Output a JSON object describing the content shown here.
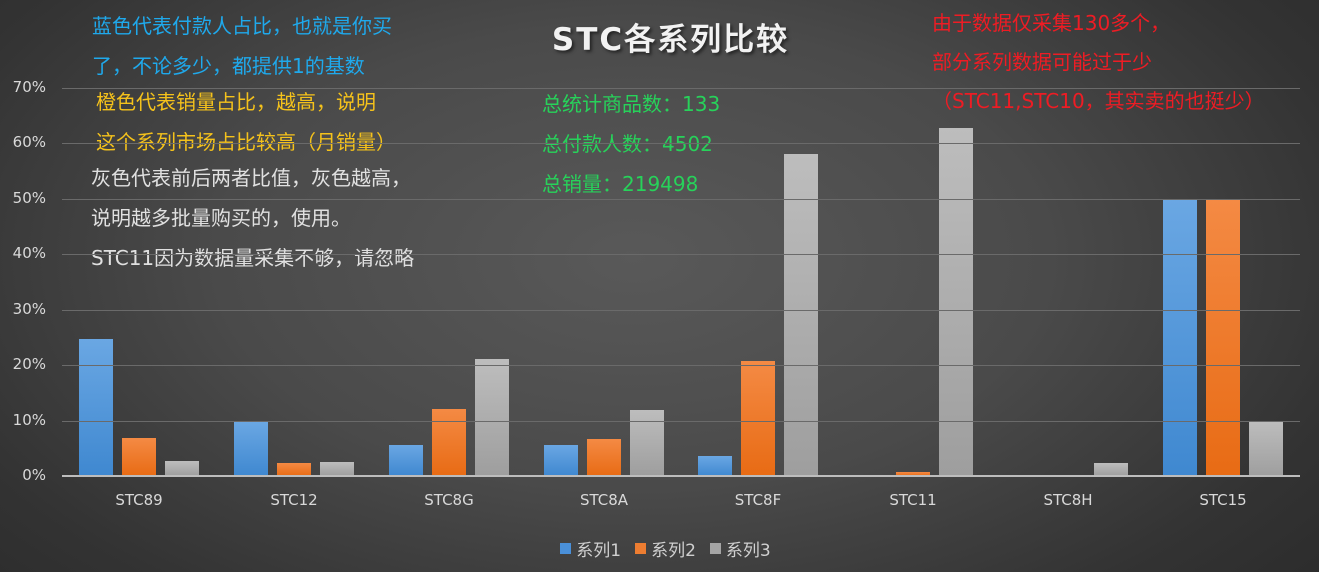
{
  "chart_data": {
    "type": "bar",
    "title": "STC各系列比较",
    "xlabel": "",
    "ylabel": "",
    "ylim": [
      0,
      0.7
    ],
    "yticks": [
      "0%",
      "10%",
      "20%",
      "30%",
      "40%",
      "50%",
      "60%",
      "70%"
    ],
    "grid": true,
    "legend_position": "bottom",
    "categories": [
      "STC89",
      "STC12",
      "STC8G",
      "STC8A",
      "STC8F",
      "STC11",
      "STC8H",
      "STC15"
    ],
    "series": [
      {
        "name": "系列1",
        "color": "#4a90d9",
        "values": [
          0.247,
          0.097,
          0.056,
          0.056,
          0.036,
          0.0,
          0.0,
          0.5
        ]
      },
      {
        "name": "系列2",
        "color": "#ed7d31",
        "values": [
          0.068,
          0.023,
          0.121,
          0.066,
          0.207,
          0.008,
          0.001,
          0.5
        ]
      },
      {
        "name": "系列3",
        "color": "#a5a5a5",
        "values": [
          0.027,
          0.025,
          0.211,
          0.119,
          0.58,
          0.627,
          0.023,
          0.1
        ]
      }
    ]
  },
  "annotations": {
    "blue": [
      "蓝色代表付款人占比，也就是你买",
      "了，不论多少，都提供1的基数"
    ],
    "orange": [
      "橙色代表销量占比，越高，说明",
      "这个系列市场占比较高（月销量）"
    ],
    "gray": [
      "灰色代表前后两者比值，灰色越高，",
      "说明越多批量购买的，使用。",
      "STC11因为数据量采集不够，请忽略"
    ],
    "green": [
      "总统计商品数：133",
      "总付款人数：4502",
      "总销量：219498"
    ],
    "red": [
      "由于数据仅采集130多个，",
      "部分系列数据可能过于少",
      "（STC11,STC10，其实卖的也挺少）"
    ]
  }
}
